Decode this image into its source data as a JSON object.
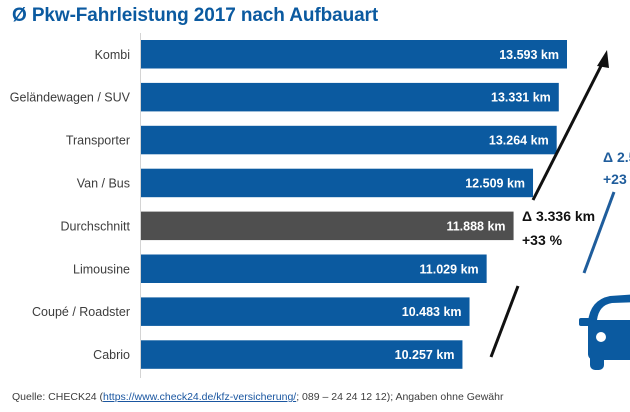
{
  "chart_data": {
    "type": "bar",
    "orientation": "horizontal",
    "title": "Ø Pkw-Fahrleistung 2017 nach Aufbauart",
    "xlabel": "",
    "ylabel": "",
    "unit": "km",
    "xlim": [
      0,
      13593
    ],
    "grid": false,
    "legend": "none",
    "categories": [
      "Kombi",
      "Geländewagen / SUV",
      "Transporter",
      "Van / Bus",
      "Durchschnitt",
      "Limousine",
      "Coupé / Roadster",
      "Cabrio"
    ],
    "values": [
      13593,
      13331,
      13264,
      12509,
      11888,
      11029,
      10483,
      10257
    ],
    "value_labels": [
      "13.593 km",
      "13.331 km",
      "13.264 km",
      "12.509 km",
      "11.888 km",
      "11.029 km",
      "10.483 km",
      "10.257 km"
    ],
    "highlight_category": "Durchschnitt",
    "colors": {
      "bar": "#0b5aa0",
      "highlight": "#4f4f4f",
      "arrow": "#111111",
      "secondary_line": "#1f5d9c"
    },
    "annotations": [
      {
        "id": "main",
        "delta": "Δ 3.336 km",
        "percent": "+33 %"
      },
      {
        "id": "secondary",
        "delta": "Δ 2.5",
        "percent": "+23"
      }
    ]
  },
  "source": {
    "prefix": "Quelle: CHECK24 (",
    "link": "https://www.check24.de/kfz-versicherung/",
    "suffix": "; 089 – 24 24 12 12); Angaben ohne Gewähr"
  },
  "icons": {
    "car": "car-icon"
  }
}
